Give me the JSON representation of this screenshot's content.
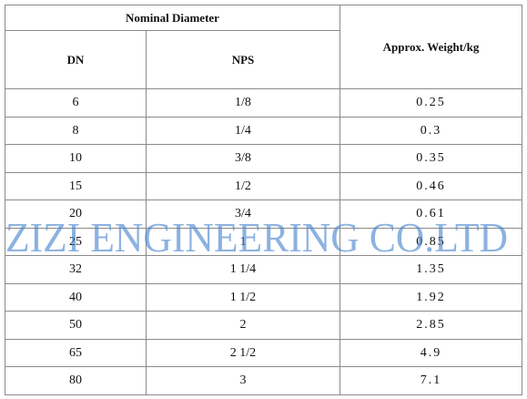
{
  "table": {
    "header": {
      "group": "Nominal Diameter",
      "columns": [
        "DN",
        "NPS",
        "Approx. Weight/kg"
      ]
    },
    "rows": [
      [
        "6",
        "1/8",
        "0.25"
      ],
      [
        "8",
        "1/4",
        "0.3"
      ],
      [
        "10",
        "3/8",
        "0.35"
      ],
      [
        "15",
        "1/2",
        "0.46"
      ],
      [
        "20",
        "3/4",
        "0.61"
      ],
      [
        "25",
        "1",
        "0.85"
      ],
      [
        "32",
        "1 1/4",
        "1.35"
      ],
      [
        "40",
        "1 1/2",
        "1.92"
      ],
      [
        "50",
        "2",
        "2.85"
      ],
      [
        "65",
        "2 1/2",
        "4.9"
      ],
      [
        "80",
        "3",
        "7.1"
      ]
    ]
  },
  "watermark": "ZIZI ENGINEERING CO.LTD"
}
